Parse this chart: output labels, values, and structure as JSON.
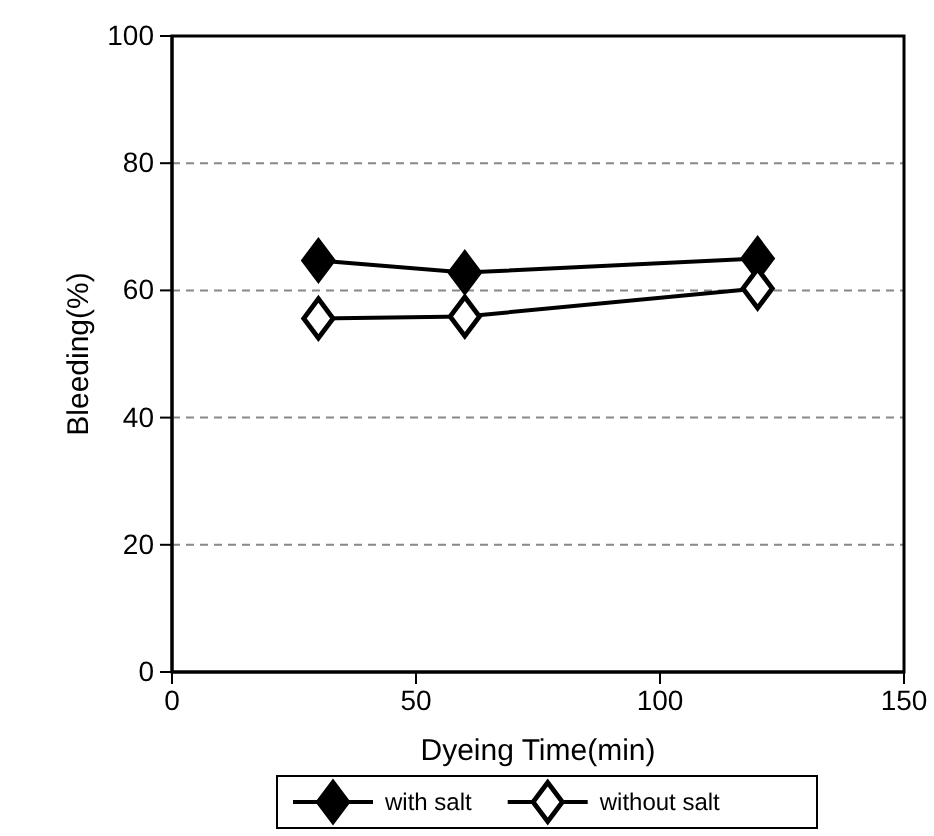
{
  "chart_data": {
    "type": "line",
    "xlabel": "Dyeing Time(min)",
    "ylabel": "Bleeding(%)",
    "x": [
      30,
      60,
      120
    ],
    "series": [
      {
        "name": "with salt",
        "color": "#000000",
        "values": [
          64.7,
          62.8,
          65
        ]
      },
      {
        "name": "without salt",
        "color": "#000000",
        "values": [
          55.6,
          55.9,
          60.3
        ]
      }
    ],
    "xlim": [
      0,
      150
    ],
    "xticks": [
      0,
      50,
      100,
      150
    ],
    "ylim": [
      0,
      100
    ],
    "yticks": [
      0,
      20,
      40,
      60,
      80,
      100
    ],
    "grid": "y",
    "legend": "bottom",
    "marker": "diamond",
    "line_style": "solid"
  }
}
